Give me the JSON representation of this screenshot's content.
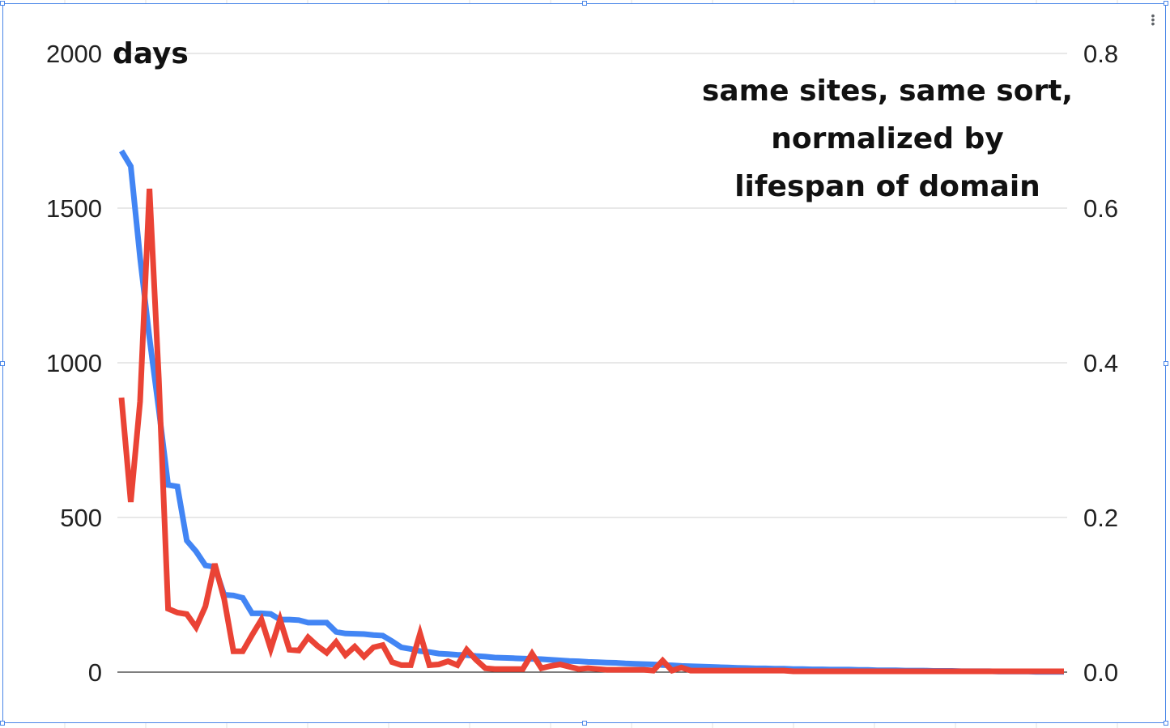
{
  "chart_data": {
    "type": "line",
    "ylabel_left": "days",
    "annotation_lines": [
      "same sites, same sort,",
      "normalized by",
      "lifespan of domain"
    ],
    "y_left": {
      "lim": [
        0,
        2000
      ],
      "ticks": [
        "0",
        "500",
        "1000",
        "1500",
        "2000"
      ]
    },
    "y_right": {
      "lim": [
        0,
        0.8
      ],
      "ticks": [
        "0.0",
        "0.2",
        "0.4",
        "0.6",
        "0.8"
      ]
    },
    "grid": true,
    "legend": "none",
    "series": [
      {
        "axis": "left",
        "color": "#4285f4",
        "values": [
          1685,
          1635,
          1340,
          1080,
          850,
          605,
          600,
          425,
          390,
          345,
          340,
          250,
          248,
          240,
          190,
          190,
          188,
          170,
          170,
          168,
          160,
          160,
          160,
          130,
          125,
          124,
          123,
          120,
          118,
          100,
          80,
          75,
          68,
          65,
          60,
          58,
          56,
          55,
          52,
          50,
          47,
          46,
          45,
          44,
          43,
          42,
          40,
          38,
          36,
          35,
          33,
          32,
          31,
          30,
          28,
          27,
          26,
          25,
          23,
          22,
          20,
          19,
          18,
          17,
          16,
          15,
          14,
          13,
          12,
          12,
          11,
          11,
          10,
          10,
          9,
          9,
          8,
          8,
          8,
          7,
          7,
          6,
          6,
          6,
          5,
          5,
          5,
          4,
          4,
          4,
          3,
          3,
          3,
          3,
          2,
          2,
          2,
          2,
          1,
          1,
          1,
          1
        ]
      },
      {
        "axis": "right",
        "color": "#ea4335",
        "values": [
          0.355,
          0.22,
          0.35,
          0.625,
          0.38,
          0.082,
          0.077,
          0.075,
          0.058,
          0.085,
          0.14,
          0.095,
          0.027,
          0.027,
          0.048,
          0.068,
          0.03,
          0.068,
          0.029,
          0.028,
          0.045,
          0.034,
          0.025,
          0.039,
          0.022,
          0.033,
          0.02,
          0.032,
          0.035,
          0.013,
          0.009,
          0.009,
          0.05,
          0.009,
          0.01,
          0.014,
          0.009,
          0.029,
          0.016,
          0.005,
          0.004,
          0.004,
          0.004,
          0.004,
          0.024,
          0.005,
          0.008,
          0.01,
          0.007,
          0.004,
          0.005,
          0.004,
          0.003,
          0.003,
          0.003,
          0.003,
          0.003,
          0.002,
          0.015,
          0.002,
          0.006,
          0.002,
          0.002,
          0.002,
          0.002,
          0.002,
          0.002,
          0.002,
          0.002,
          0.002,
          0.002,
          0.002,
          0.001,
          0.001,
          0.001,
          0.001,
          0.001,
          0.001,
          0.001,
          0.001,
          0.001,
          0.001,
          0.001,
          0.001,
          0.001,
          0.001,
          0.001,
          0.001,
          0.001,
          0.001,
          0.001,
          0.001,
          0.001,
          0.001,
          0.001,
          0.001,
          0.001,
          0.001,
          0.001,
          0.001,
          0.001,
          0.001
        ]
      }
    ]
  }
}
